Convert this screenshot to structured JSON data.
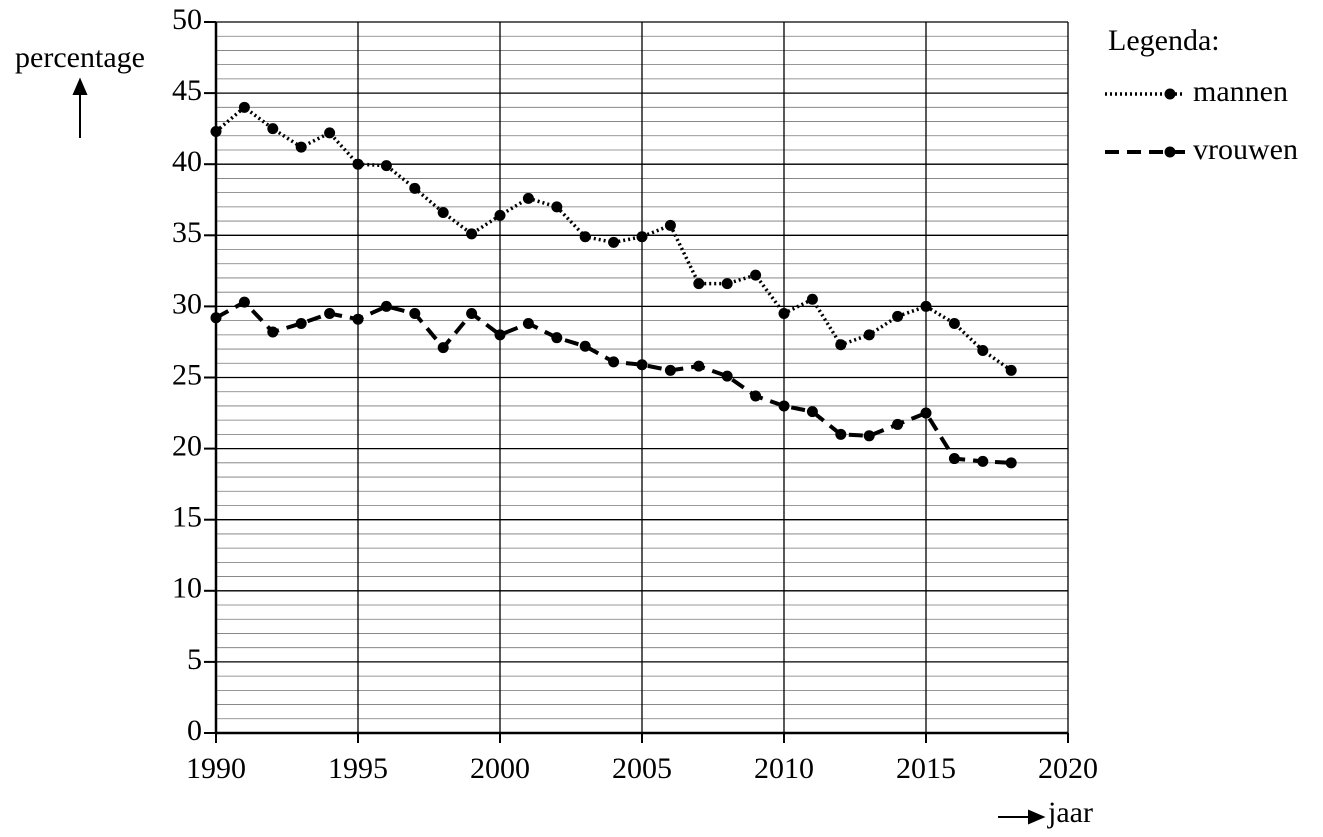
{
  "chart_data": {
    "type": "line",
    "ylabel": "percentage",
    "xlabel": "jaar",
    "legend_title": "Legenda:",
    "x": [
      1990,
      1991,
      1992,
      1993,
      1994,
      1995,
      1996,
      1997,
      1998,
      1999,
      2000,
      2001,
      2002,
      2003,
      2004,
      2005,
      2006,
      2007,
      2008,
      2009,
      2010,
      2011,
      2012,
      2013,
      2014,
      2015,
      2016,
      2017,
      2018
    ],
    "series": [
      {
        "name": "mannen",
        "color": "#000000",
        "style": "dotted",
        "values": [
          42.3,
          44.0,
          42.5,
          41.2,
          42.2,
          40.0,
          39.9,
          38.3,
          36.6,
          35.1,
          36.4,
          37.6,
          37.0,
          34.9,
          34.5,
          34.9,
          35.7,
          31.6,
          31.6,
          32.2,
          29.5,
          30.5,
          27.3,
          28.0,
          29.3,
          30.0,
          28.8,
          26.9,
          25.5
        ]
      },
      {
        "name": "vrouwen",
        "color": "#000000",
        "style": "dashed",
        "values": [
          29.2,
          30.3,
          28.2,
          28.8,
          29.5,
          29.1,
          30.0,
          29.5,
          27.1,
          29.5,
          28.0,
          28.8,
          27.8,
          27.2,
          26.1,
          25.9,
          25.5,
          25.8,
          25.1,
          23.7,
          23.0,
          22.6,
          21.0,
          20.9,
          21.7,
          22.5,
          19.3,
          19.1,
          19.0
        ]
      }
    ],
    "xlim": [
      1990,
      2020
    ],
    "xticks": [
      1990,
      1995,
      2000,
      2005,
      2010,
      2015,
      2020
    ],
    "ylim": [
      0,
      50
    ],
    "yticks": [
      0,
      5,
      10,
      15,
      20,
      25,
      30,
      35,
      40,
      45,
      50
    ],
    "grid": true,
    "minor_grid_step": 1,
    "legend": "right"
  }
}
